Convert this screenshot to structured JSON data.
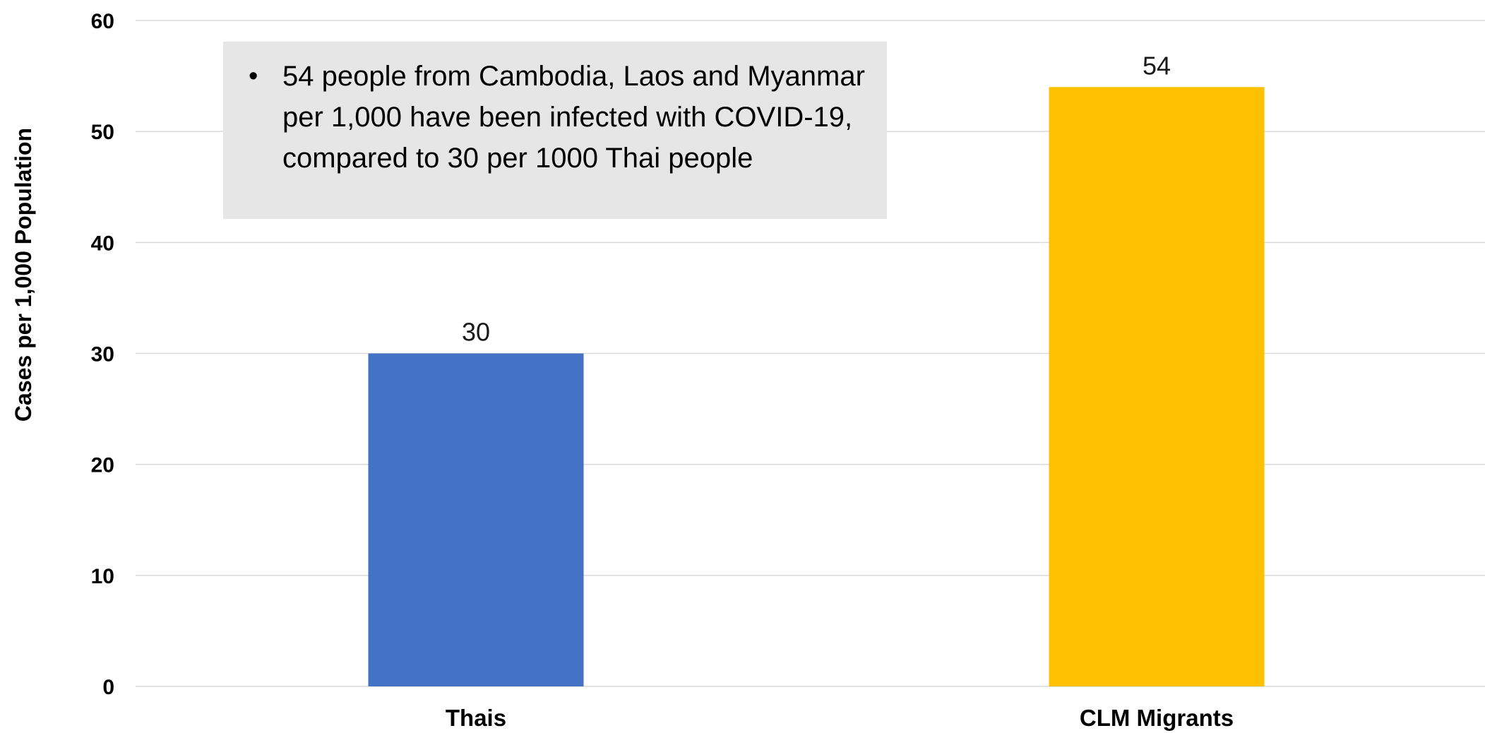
{
  "annotation": {
    "bullet": "•",
    "text": "54 people from Cambodia, Laos and Myanmar per 1,000 have been infected with COVID-19, compared to 30 per 1000 Thai people"
  },
  "chart_data": {
    "type": "bar",
    "categories": [
      "Thais",
      "CLM Migrants"
    ],
    "values": [
      30,
      54
    ],
    "data_labels": [
      "30",
      "54"
    ],
    "colors": [
      "#4472c4",
      "#ffc000"
    ],
    "title": "",
    "xlabel": "",
    "ylabel": "Cases per 1,000 Population",
    "ylim": [
      0,
      60
    ],
    "yticks": [
      0,
      10,
      20,
      30,
      40,
      50,
      60
    ],
    "ytick_labels": [
      "0",
      "10",
      "20",
      "30",
      "40",
      "50",
      "60"
    ],
    "grid": true,
    "legend": "none"
  }
}
